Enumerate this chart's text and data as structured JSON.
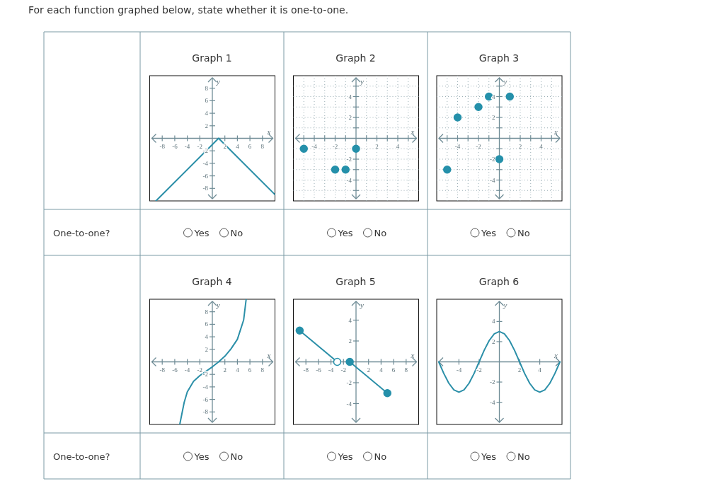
{
  "chart_data": [
    {
      "type": "other",
      "title": "For each function graphed below, state whether it is one-to-one.",
      "annotations": [
        "One-to-one?",
        "One-to-one?"
      ]
    },
    {
      "type": "line",
      "title": "Graph 1",
      "xlabel": "x",
      "ylabel": "y",
      "xlim": [
        -10,
        10
      ],
      "ylim": [
        -10,
        10
      ],
      "xticks": [
        -8,
        -6,
        -4,
        -2,
        2,
        4,
        6,
        8
      ],
      "yticks": [
        -8,
        -6,
        -4,
        -2,
        2,
        4,
        6,
        8
      ],
      "series": [
        {
          "color": "#2b8fa8",
          "x": [
            -9,
            1,
            10
          ],
          "values": [
            -10,
            0,
            -9
          ]
        }
      ],
      "annotations": [
        "Yes",
        "No"
      ]
    },
    {
      "type": "scatter",
      "title": "Graph 2",
      "xlabel": "x",
      "ylabel": "y",
      "xlim": [
        -6,
        6
      ],
      "ylim": [
        -6,
        6
      ],
      "grid": true,
      "marker": "circle",
      "xticks": [
        {
          "value": -5,
          "label": null
        },
        -4,
        {
          "value": -3,
          "label": null
        },
        -2,
        {
          "value": -1,
          "label": null
        },
        {
          "value": 1,
          "label": null
        },
        2,
        {
          "value": 3,
          "label": null
        },
        4,
        {
          "value": 5,
          "label": null
        }
      ],
      "yticks": [
        {
          "value": -5,
          "label": null
        },
        -4,
        {
          "value": -3,
          "label": null
        },
        -2,
        {
          "value": -1,
          "label": null
        },
        {
          "value": 1,
          "label": null
        },
        2,
        {
          "value": 3,
          "label": null
        },
        4,
        {
          "value": 5,
          "label": null
        }
      ],
      "series": [
        {
          "color": "#2590aa",
          "x": [
            -5,
            -2,
            -1,
            0
          ],
          "values": [
            -1,
            -3,
            -3,
            -1
          ]
        }
      ],
      "annotations": [
        "Yes",
        "No"
      ]
    },
    {
      "type": "scatter",
      "title": "Graph 3",
      "xlabel": "x",
      "ylabel": "y",
      "xlim": [
        -6,
        6
      ],
      "ylim": [
        -6,
        6
      ],
      "grid": true,
      "marker": "circle",
      "xticks": [
        {
          "value": -5,
          "label": null
        },
        -4,
        {
          "value": -3,
          "label": null
        },
        -2,
        {
          "value": -1,
          "label": null
        },
        {
          "value": 1,
          "label": null
        },
        2,
        {
          "value": 3,
          "label": null
        },
        4,
        {
          "value": 5,
          "label": null
        }
      ],
      "yticks": [
        {
          "value": -5,
          "label": null
        },
        -4,
        {
          "value": -3,
          "label": null
        },
        -2,
        {
          "value": -1,
          "label": null
        },
        {
          "value": 1,
          "label": null
        },
        2,
        {
          "value": 3,
          "label": null
        },
        4,
        {
          "value": 5,
          "label": null
        }
      ],
      "series": [
        {
          "color": "#2590aa",
          "x": [
            -5,
            -4,
            -2,
            -1,
            0,
            1
          ],
          "values": [
            -3,
            2,
            3,
            4,
            -2,
            4
          ]
        }
      ],
      "annotations": [
        "Yes",
        "No"
      ]
    },
    {
      "type": "line",
      "title": "Graph 4",
      "xlabel": "x",
      "ylabel": "y",
      "xlim": [
        -10,
        10
      ],
      "ylim": [
        -10,
        10
      ],
      "xticks": [
        -8,
        -6,
        -4,
        -2,
        2,
        4,
        6,
        8
      ],
      "yticks": [
        -8,
        -6,
        -4,
        -2,
        2,
        4,
        6,
        8
      ],
      "series": [
        {
          "color": "#2b8fa8",
          "x": [
            -5.2,
            -4.5,
            -4,
            -3,
            -2,
            -1,
            0,
            1,
            2,
            3,
            4,
            5,
            5.4
          ],
          "values": [
            -10,
            -6.5,
            -4.8,
            -3.1,
            -2.2,
            -1.5,
            -0.8,
            0,
            0.9,
            2.1,
            3.6,
            6.7,
            10
          ]
        }
      ],
      "annotations": [
        "Yes",
        "No"
      ]
    },
    {
      "type": "line",
      "title": "Graph 5",
      "xlabel": "x",
      "ylabel": "y",
      "xlim": [
        -10,
        10
      ],
      "ylim": [
        -6,
        6
      ],
      "xticks": [
        -8,
        -6,
        -4,
        -2,
        2,
        4,
        6,
        8
      ],
      "yticks": [
        -4,
        -2,
        2,
        4
      ],
      "series": [
        {
          "color": "#2b8fa8",
          "x": [
            -9,
            -3
          ],
          "values": [
            3,
            0
          ]
        },
        {
          "color": "#2b8fa8",
          "x": [
            -1,
            5
          ],
          "values": [
            0,
            -3
          ]
        },
        {
          "type": "scatter",
          "marker": "circle",
          "color": "#2590aa",
          "x": [
            -9,
            -1,
            5
          ],
          "values": [
            3,
            0,
            -3
          ]
        },
        {
          "type": "scatter",
          "marker": "circle",
          "color": "#ffffff",
          "x": [
            -3
          ],
          "values": [
            0
          ]
        }
      ],
      "annotations": [
        "Yes",
        "No"
      ]
    },
    {
      "type": "line",
      "title": "Graph 6",
      "xlabel": "x",
      "ylabel": "y",
      "xlim": [
        -6.2,
        6.2
      ],
      "ylim": [
        -6.2,
        6.2
      ],
      "xticks": [
        -4,
        -2,
        2,
        4
      ],
      "yticks": [
        -4,
        -2,
        2,
        4
      ],
      "series": [
        {
          "color": "#2b8fa8",
          "x": [
            -6,
            -5.5,
            -5,
            -4.5,
            -4,
            -3.5,
            -3,
            -2.5,
            -2,
            -1.5,
            -1,
            -0.5,
            0,
            0.5,
            1,
            1.5,
            2,
            2.5,
            3,
            3.5,
            4,
            4.5,
            5,
            5.5,
            6
          ],
          "values": [
            0,
            -1.15,
            -2.12,
            -2.77,
            -3,
            -2.77,
            -2.12,
            -1.15,
            0,
            1.15,
            2.12,
            2.77,
            3,
            2.77,
            2.12,
            1.15,
            0,
            -1.15,
            -2.12,
            -2.77,
            -3,
            -2.77,
            -2.12,
            -1.15,
            0
          ]
        }
      ],
      "annotations": [
        "Yes",
        "No"
      ]
    }
  ]
}
